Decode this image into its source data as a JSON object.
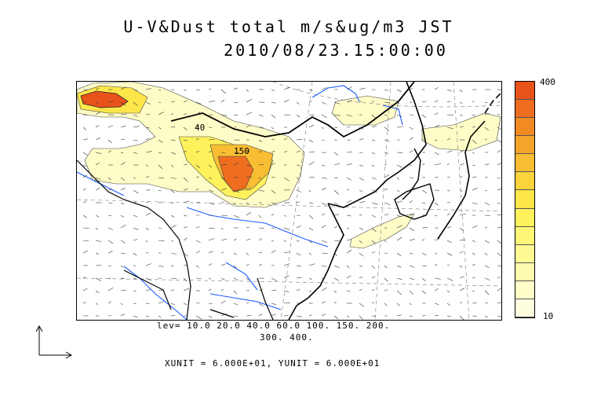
{
  "title": {
    "line1": "U-V&Dust total m/s&ug/m3 JST",
    "line2": "2010/08/23.15:00:00"
  },
  "contour_levels": {
    "line1": "lev= 10.0 20.0 40.0 60.0 100. 150. 200.",
    "line2": "300. 400."
  },
  "units_text": "XUNIT = 6.000E+01, YUNIT = 6.000E+01",
  "colorbar": {
    "max_label": "400",
    "min_label": "10",
    "colors": [
      "#e8531b",
      "#ee6d1f",
      "#f28a24",
      "#f5a42b",
      "#f8bd33",
      "#fbd33c",
      "#fde64a",
      "#fef15c",
      "#fef676",
      "#fef993",
      "#fefbae",
      "#fefcc7",
      "#fefde0"
    ]
  },
  "map_annotations": [
    "40",
    "150"
  ],
  "legend_icons": [
    "reference-vector-arrow-icon"
  ]
}
